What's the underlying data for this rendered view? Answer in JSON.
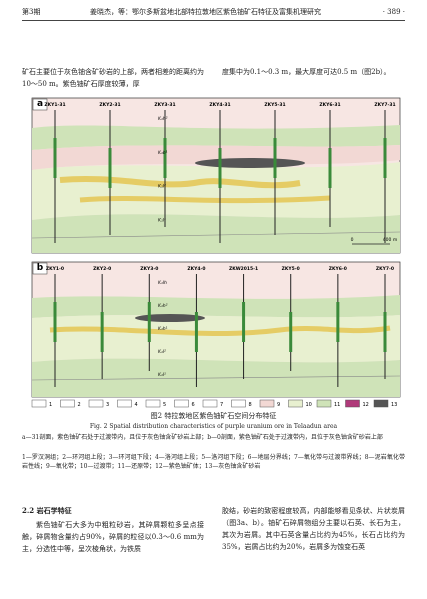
{
  "header": {
    "issue": "第3期",
    "running_title": "姜晓杰，等：鄂尔多斯盆地北部特拉敦地区紫色铀矿石特征及富集机理研究",
    "page": "· 389 ·"
  },
  "intro": {
    "left": "矿石主要位于灰色铀含矿砂岩的上部，两者相差的距离约为10～50 m。紫色铀矿石厚度较薄，厚",
    "right": "度集中为0.1～0.3 m，最大厚度可达0.5 m（图2b）。"
  },
  "figure": {
    "panel_a": {
      "label": "a",
      "wells": [
        "ZKY1-31",
        "ZKY2-31",
        "ZKY3-31",
        "ZKY4-31",
        "ZKY5-31",
        "ZKY6-31",
        "ZKY7-31"
      ],
      "strata": [
        "K₁h²",
        "K₁h¹",
        "K₁l²",
        "K₁l¹"
      ],
      "scale": [
        "0",
        "400 m"
      ]
    },
    "panel_b": {
      "label": "b",
      "wells": [
        "ZKY1-0",
        "ZKY2-0",
        "ZKY3-0",
        "ZKY4-0",
        "ZKW2015-1",
        "ZKY5-0",
        "ZKY6-0",
        "ZKY7-0"
      ],
      "strata": [
        "K₁lh",
        "K₁h²",
        "K₁h¹",
        "K₁l²",
        "K₁l¹"
      ]
    },
    "legend": [
      "1",
      "2",
      "3",
      "4",
      "5",
      "6",
      "7",
      "8",
      "9",
      "10",
      "11",
      "12",
      "13"
    ],
    "caption_cn": "图2 特拉敦地区紫色铀矿石空间分布特征",
    "caption_en": "Fig. 2 Spatial distribution characteristics of purple uranium ore in Telaadun area",
    "note": "a—31剖面，紫色铀矿石处于过渡带内，且位于灰色铀含矿砂岩上部；b—0剖面，紫色铀矿石处于过渡带内，且位于灰色铀含矿砂岩上部",
    "legend_note": "1—罗汉洞组；2—环河组上段；3—环河组下段；4—洛河组上段；5—洛河组下段；6—地层分界线；7—氧化带与过渡带界线；8—泥岩氧化带岩性线；9—氧化带；10—过渡带；11—还原带；12—紫色铀矿体；13—灰色铀含矿砂岩"
  },
  "section": {
    "heading": "2.2 岩石学特征",
    "left": "紫色铀矿石大多为中粗粒砂岩，其碎屑颗粒多呈点接触，碎屑物含量约占90%，碎屑的粒径以0.3～0.6 mm为主，分选性中等，呈次棱角状，为铁质",
    "right": "胶结，砂岩的致密程度较高，内部能够看见条状、片状炭屑（图3a、b）。铀矿石碎屑物组分主要以石英、长石为主，其次为岩屑。其中石英含量占比约为45%，长石占比约为35%，岩屑占比约为20%，岩屑多为蚀变石英"
  }
}
